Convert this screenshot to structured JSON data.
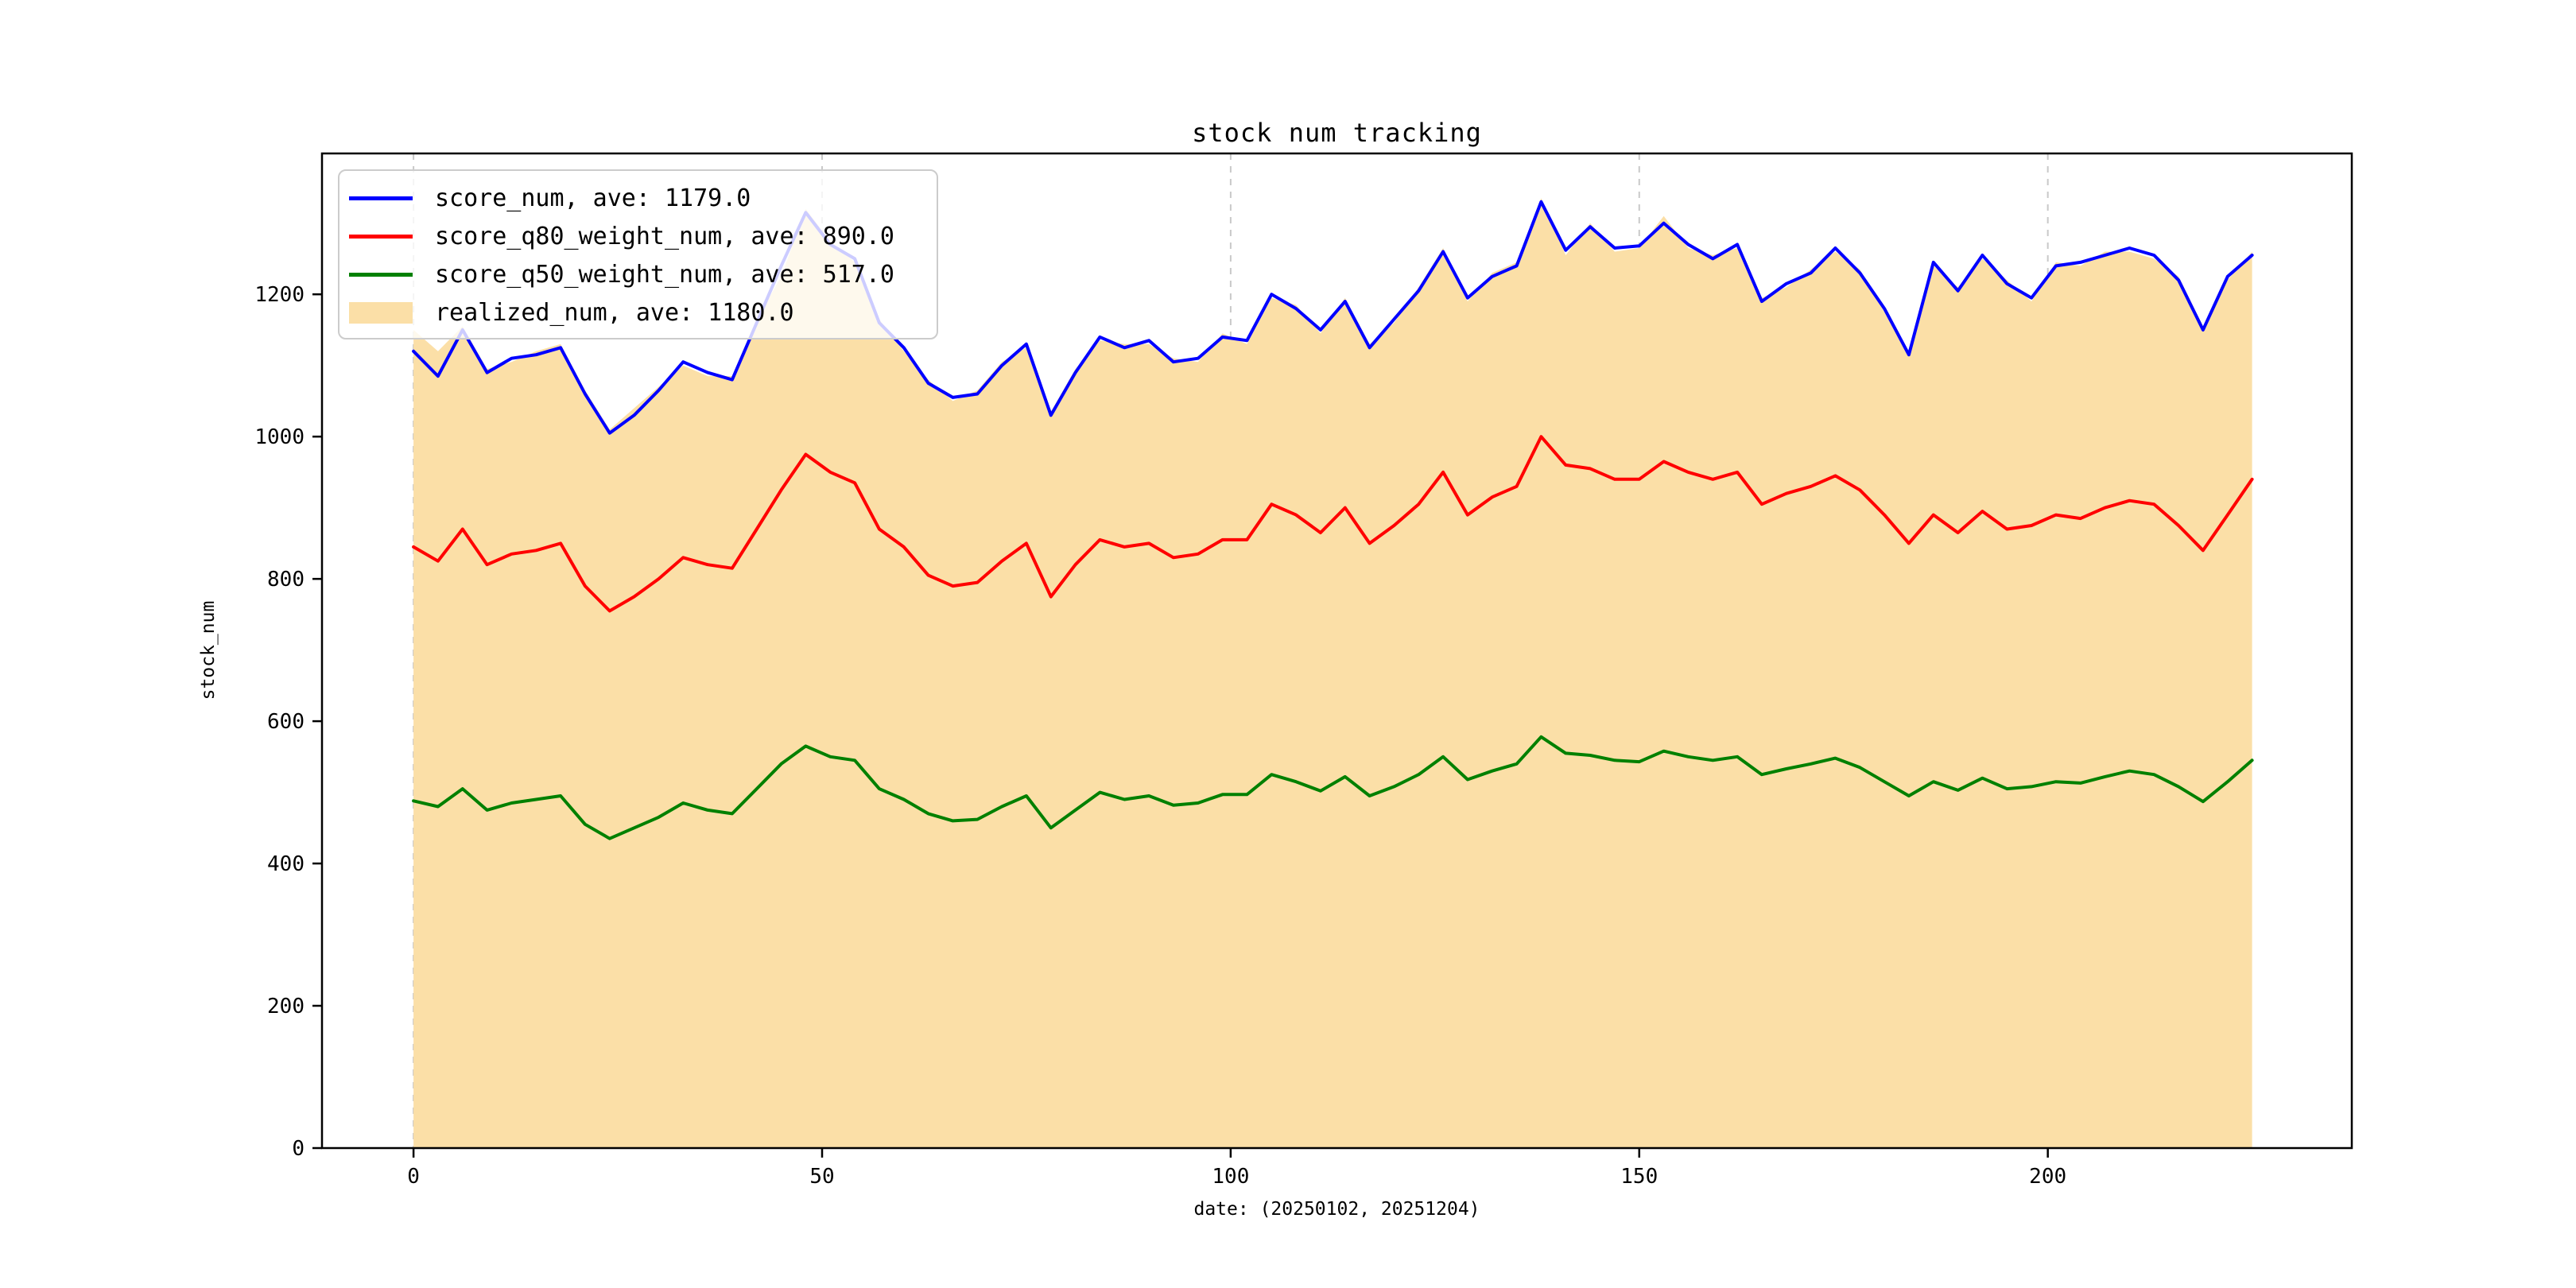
{
  "window": {
    "background": "#ffffff"
  },
  "chart_data": {
    "type": "line",
    "title": "stock num tracking",
    "xlabel": "date: (20250102, 20251204)",
    "ylabel": "stock_num",
    "xlim": [
      -11.2,
      237.2
    ],
    "ylim": [
      0,
      1398
    ],
    "xticks": [
      0,
      50,
      100,
      150,
      200
    ],
    "yticks": [
      0,
      200,
      400,
      600,
      800,
      1000,
      1200
    ],
    "grid": "vertical-dashed-at-xticks",
    "grid_color": "#c9c9c9",
    "legend_position": "upper-left",
    "axis_color": "#000000",
    "x": [
      0,
      3,
      6,
      9,
      12,
      15,
      18,
      21,
      24,
      27,
      30,
      33,
      36,
      39,
      42,
      45,
      48,
      51,
      54,
      57,
      60,
      63,
      66,
      69,
      72,
      75,
      78,
      81,
      84,
      87,
      90,
      93,
      96,
      99,
      102,
      105,
      108,
      111,
      114,
      117,
      120,
      123,
      126,
      129,
      132,
      135,
      138,
      141,
      144,
      147,
      150,
      153,
      156,
      159,
      162,
      165,
      168,
      171,
      174,
      177,
      180,
      183,
      186,
      189,
      192,
      195,
      198,
      201,
      204,
      207,
      210,
      213,
      216,
      219,
      222,
      225
    ],
    "series": [
      {
        "name": "score_num",
        "label": "score_num, ave: 1179.0",
        "color": "#0000ff",
        "style": "line",
        "average": 1179.0,
        "values": [
          1120,
          1085,
          1150,
          1090,
          1110,
          1115,
          1125,
          1060,
          1005,
          1030,
          1065,
          1105,
          1090,
          1080,
          1160,
          1240,
          1315,
          1270,
          1250,
          1160,
          1125,
          1075,
          1055,
          1060,
          1100,
          1130,
          1030,
          1090,
          1140,
          1125,
          1135,
          1105,
          1110,
          1140,
          1135,
          1200,
          1180,
          1150,
          1190,
          1125,
          1165,
          1205,
          1260,
          1195,
          1225,
          1240,
          1330,
          1262,
          1295,
          1265,
          1268,
          1300,
          1270,
          1250,
          1270,
          1190,
          1215,
          1230,
          1265,
          1230,
          1180,
          1115,
          1245,
          1205,
          1255,
          1215,
          1195,
          1240,
          1245,
          1255,
          1265,
          1255,
          1220,
          1150,
          1225,
          1255
        ]
      },
      {
        "name": "score_q80_weight_num",
        "label": "score_q80_weight_num, ave: 890.0",
        "color": "#ff0000",
        "style": "line",
        "average": 890.0,
        "values": [
          845,
          825,
          870,
          820,
          835,
          840,
          850,
          790,
          755,
          775,
          800,
          830,
          820,
          815,
          870,
          925,
          975,
          950,
          935,
          870,
          845,
          805,
          790,
          795,
          825,
          850,
          775,
          820,
          855,
          845,
          850,
          830,
          835,
          855,
          855,
          905,
          890,
          865,
          900,
          850,
          875,
          905,
          950,
          890,
          915,
          930,
          1000,
          960,
          955,
          940,
          940,
          965,
          950,
          940,
          950,
          905,
          920,
          930,
          945,
          925,
          890,
          850,
          890,
          865,
          895,
          870,
          875,
          890,
          885,
          900,
          910,
          905,
          875,
          840,
          890,
          940
        ]
      },
      {
        "name": "score_q50_weight_num",
        "label": "score_q50_weight_num, ave: 517.0",
        "color": "#008000",
        "style": "line",
        "average": 517.0,
        "values": [
          488,
          480,
          505,
          475,
          485,
          490,
          495,
          455,
          435,
          450,
          465,
          485,
          475,
          470,
          505,
          540,
          565,
          550,
          545,
          505,
          490,
          470,
          460,
          462,
          480,
          495,
          450,
          475,
          500,
          490,
          495,
          482,
          485,
          497,
          497,
          525,
          515,
          502,
          522,
          495,
          508,
          525,
          550,
          518,
          530,
          540,
          578,
          555,
          552,
          545,
          543,
          558,
          550,
          545,
          550,
          525,
          533,
          540,
          548,
          535,
          515,
          495,
          515,
          503,
          520,
          505,
          508,
          515,
          513,
          522,
          530,
          525,
          508,
          487,
          515,
          545
        ]
      },
      {
        "name": "realized_num",
        "label": "realized_num, ave: 1180.0",
        "color": "#fbdfa7",
        "style": "area",
        "average": 1180.0,
        "values": [
          1150,
          1120,
          1155,
          1095,
          1105,
          1120,
          1130,
          1065,
          1010,
          1040,
          1070,
          1100,
          1085,
          1085,
          1165,
          1225,
          1320,
          1275,
          1245,
          1165,
          1120,
          1080,
          1050,
          1065,
          1105,
          1125,
          1035,
          1095,
          1135,
          1130,
          1130,
          1110,
          1105,
          1145,
          1130,
          1195,
          1185,
          1145,
          1195,
          1130,
          1160,
          1210,
          1265,
          1190,
          1230,
          1245,
          1335,
          1255,
          1300,
          1260,
          1265,
          1310,
          1265,
          1255,
          1265,
          1195,
          1210,
          1235,
          1260,
          1235,
          1175,
          1120,
          1240,
          1210,
          1250,
          1220,
          1190,
          1245,
          1240,
          1260,
          1260,
          1250,
          1225,
          1155,
          1220,
          1260
        ]
      }
    ]
  }
}
